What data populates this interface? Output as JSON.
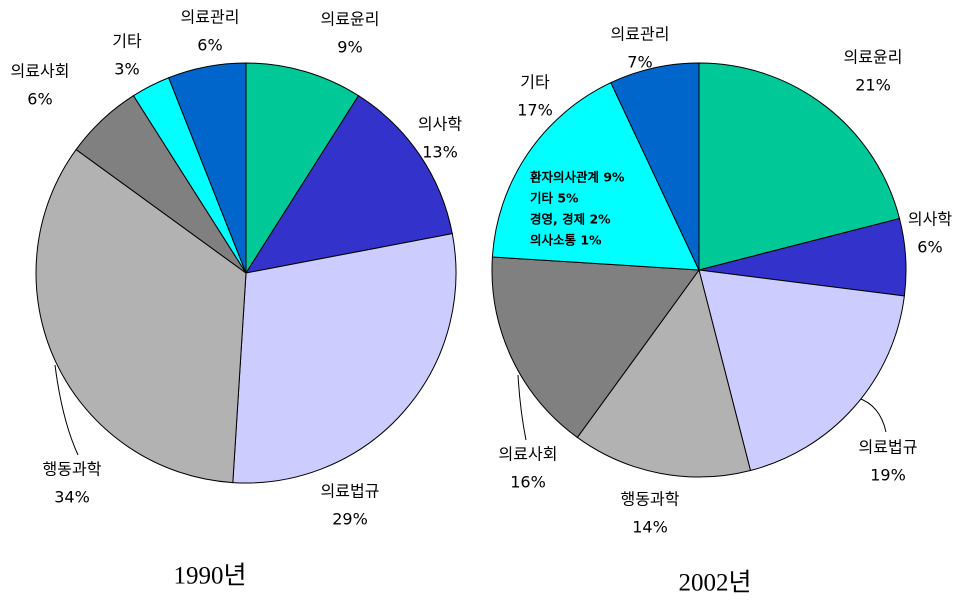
{
  "chart_data": [
    {
      "type": "pie",
      "title": "1990년",
      "categories": [
        "의료윤리",
        "의사학",
        "의료법규",
        "행동과학",
        "의료사회",
        "기타",
        "의료관리"
      ],
      "values": [
        9,
        13,
        29,
        34,
        6,
        3,
        6
      ],
      "value_labels": [
        "9%",
        "13%",
        "29%",
        "34%",
        "6%",
        "3%",
        "6%"
      ],
      "colors": [
        "#00c896",
        "#3333cc",
        "#ccccff",
        "#b2b2b2",
        "#808080",
        "#00ffff",
        "#0066cc"
      ]
    },
    {
      "type": "pie",
      "title": "2002년",
      "categories": [
        "의료윤리",
        "의사학",
        "의료법규",
        "행동과학",
        "의료사회",
        "기타",
        "의료관리"
      ],
      "values": [
        21,
        6,
        19,
        14,
        16,
        17,
        7
      ],
      "value_labels": [
        "21%",
        "6%",
        "19%",
        "14%",
        "16%",
        "17%",
        "7%"
      ],
      "colors": [
        "#00c896",
        "#3333cc",
        "#ccccff",
        "#b2b2b2",
        "#808080",
        "#00ffff",
        "#0066cc"
      ],
      "annotations": [
        "환자의사관계 9%",
        "기타 5%",
        "경영, 경제 2%",
        "의사소통 1%"
      ]
    }
  ]
}
